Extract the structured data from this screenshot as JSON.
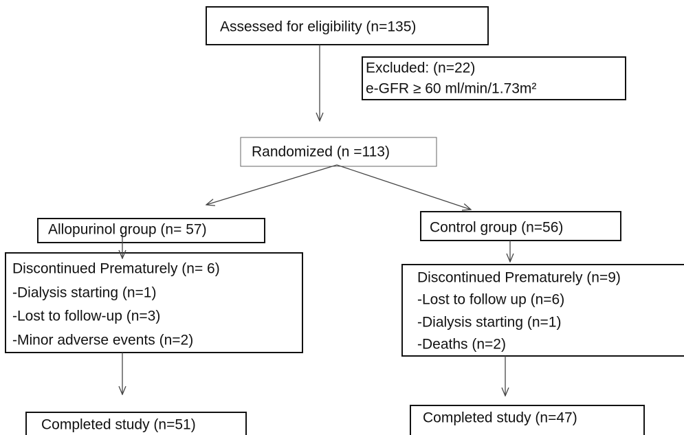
{
  "nodes": [
    {
      "lines": [
        "Assessed for eligibility (n=135)"
      ]
    },
    {
      "lines": [
        "Excluded: (n=22)",
        "e-GFR ≥ 60 ml/min/1.73m²"
      ]
    },
    {
      "lines": [
        "Randomized (n =113)"
      ]
    },
    {
      "lines": [
        "Allopurinol group (n= 57)"
      ]
    },
    {
      "lines": [
        "Discontinued Prematurely (n= 6)",
        "-Dialysis starting (n=1)",
        "-Lost to follow-up (n=3)",
        "-Minor adverse events (n=2)"
      ]
    },
    {
      "lines": [
        "Completed study (n=51)"
      ]
    },
    {
      "lines": [
        "Control group (n=56)"
      ]
    },
    {
      "lines": [
        "Discontinued Prematurely (n=9)",
        "-Lost to follow up (n=6)",
        "-Dialysis starting (n=1)",
        "-Deaths (n=2)"
      ]
    },
    {
      "lines": [
        "Completed study (n=47)"
      ]
    }
  ]
}
